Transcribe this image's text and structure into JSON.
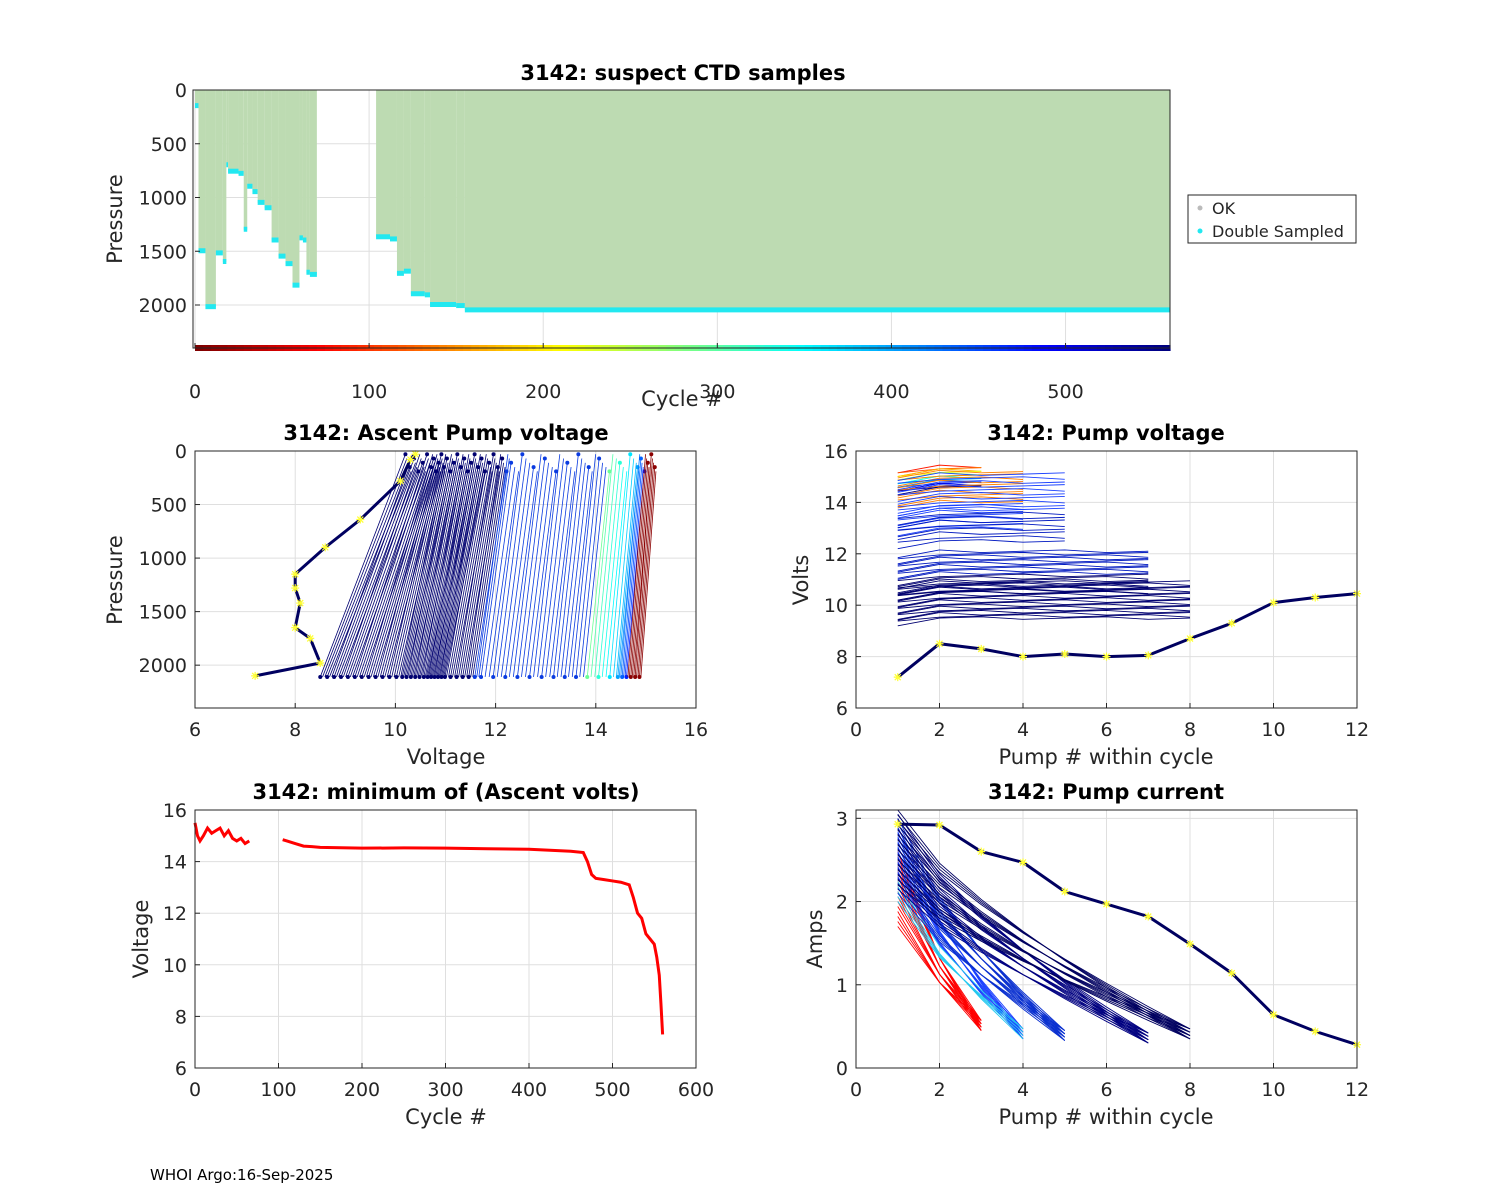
{
  "footer": "WHOI Argo:16-Sep-2025",
  "colors": {
    "ok": "#bddbb2",
    "double": "#22e8f0",
    "min_line": "#ff0000",
    "star": "#ffff33",
    "dark": "#000060"
  },
  "chart_data": [
    {
      "id": "suspect",
      "type": "bar",
      "title": "3142: suspect CTD samples",
      "xlabel": "Cycle #",
      "ylabel": "Pressure",
      "xlim": [
        0,
        560
      ],
      "ylim": [
        2400,
        0
      ],
      "xticks": [
        0,
        100,
        200,
        300,
        400,
        500
      ],
      "yticks": [
        0,
        500,
        1000,
        1500,
        2000
      ],
      "legend": {
        "position": "right",
        "items": [
          "OK",
          "Double Sampled"
        ]
      },
      "colorbar": "jet-reversed",
      "spans": [
        [
          0,
          2,
          150
        ],
        [
          2,
          6,
          1500
        ],
        [
          6,
          12,
          2020
        ],
        [
          12,
          16,
          1520
        ],
        [
          16,
          18,
          1600
        ],
        [
          18,
          19,
          700
        ],
        [
          19,
          25,
          760
        ],
        [
          25,
          28,
          780
        ],
        [
          28,
          30,
          1300
        ],
        [
          30,
          33,
          900
        ],
        [
          33,
          36,
          950
        ],
        [
          36,
          40,
          1050
        ],
        [
          40,
          44,
          1100
        ],
        [
          44,
          48,
          1400
        ],
        [
          48,
          52,
          1550
        ],
        [
          52,
          56,
          1620
        ],
        [
          56,
          60,
          1820
        ],
        [
          60,
          62,
          1380
        ],
        [
          62,
          64,
          1400
        ],
        [
          64,
          66,
          1700
        ],
        [
          66,
          70,
          1720
        ],
        [
          104,
          112,
          1370
        ],
        [
          112,
          116,
          1390
        ],
        [
          116,
          120,
          1710
        ],
        [
          120,
          124,
          1690
        ],
        [
          124,
          132,
          1900
        ],
        [
          132,
          135,
          1910
        ],
        [
          135,
          150,
          2000
        ],
        [
          150,
          155,
          2010
        ],
        [
          155,
          560,
          2050
        ]
      ]
    },
    {
      "id": "ascent",
      "type": "line",
      "title": "3142: Ascent Pump voltage",
      "xlabel": "Voltage",
      "ylabel": "Pressure",
      "xlim": [
        6,
        16
      ],
      "ylim": [
        2400,
        0
      ],
      "xticks": [
        6,
        8,
        10,
        12,
        14,
        16
      ],
      "yticks": [
        0,
        500,
        1000,
        1500,
        2000
      ],
      "last_profile": {
        "x": [
          7.2,
          8.5,
          8.3,
          8.0,
          8.1,
          8.0,
          8.0,
          8.6,
          9.3,
          10.1,
          10.3,
          10.4
        ],
        "y": [
          2100,
          1980,
          1750,
          1650,
          1420,
          1280,
          1150,
          900,
          640,
          280,
          80,
          30
        ]
      },
      "bulk_profiles": [
        {
          "x_top": 10.2,
          "x_bottom": 8.5
        },
        {
          "x_top": 10.7,
          "x_bottom": 9.3
        },
        {
          "x_top": 11.0,
          "x_bottom": 10.1
        },
        {
          "x_top": 11.4,
          "x_bottom": 10.6
        },
        {
          "x_top": 11.8,
          "x_bottom": 11.0
        },
        {
          "x_top": 12.3,
          "x_bottom": 11.7
        },
        {
          "x_top": 13.6,
          "x_bottom": 13.1
        },
        {
          "x_top": 14.8,
          "x_bottom": 14.4
        },
        {
          "x_top": 15.2,
          "x_bottom": 14.9
        }
      ]
    },
    {
      "id": "pumpvolt",
      "type": "line",
      "title": "3142: Pump voltage",
      "xlabel": "Pump # within cycle",
      "ylabel": "Volts",
      "xlim": [
        0,
        12
      ],
      "ylim": [
        6,
        16
      ],
      "xticks": [
        0,
        2,
        4,
        6,
        8,
        10,
        12
      ],
      "yticks": [
        6,
        8,
        10,
        12,
        14,
        16
      ],
      "last_cycle": {
        "x": [
          1,
          2,
          3,
          4,
          5,
          6,
          7,
          8,
          9,
          10,
          11,
          12
        ],
        "y": [
          7.2,
          8.5,
          8.3,
          8.0,
          8.1,
          8.0,
          8.05,
          8.7,
          9.3,
          10.1,
          10.3,
          10.45
        ]
      },
      "bands": [
        {
          "pumps": 3,
          "v_low": 14.6,
          "v_high": 15.4
        },
        {
          "pumps": 4,
          "v_low": 13.0,
          "v_high": 15.2
        },
        {
          "pumps": 5,
          "v_low": 12.5,
          "v_high": 15.1
        },
        {
          "pumps": 7,
          "v_low": 10.5,
          "v_high": 12.1
        },
        {
          "pumps": 8,
          "v_low": 9.5,
          "v_high": 10.9
        }
      ]
    },
    {
      "id": "minvolts",
      "type": "line",
      "title": "3142: minimum of (Ascent volts)",
      "xlabel": "Cycle #",
      "ylabel": "Voltage",
      "xlim": [
        0,
        600
      ],
      "ylim": [
        6,
        16
      ],
      "xticks": [
        0,
        100,
        200,
        300,
        400,
        500,
        600
      ],
      "yticks": [
        6,
        8,
        10,
        12,
        14,
        16
      ],
      "x": [
        0,
        3,
        6,
        10,
        15,
        20,
        25,
        30,
        35,
        40,
        45,
        50,
        55,
        60,
        65,
        70,
        105,
        110,
        120,
        130,
        140,
        150,
        200,
        250,
        300,
        350,
        400,
        450,
        465,
        470,
        475,
        480,
        490,
        500,
        510,
        520,
        525,
        530,
        535,
        540,
        545,
        550,
        553,
        556,
        558,
        560
      ],
      "y": [
        15.5,
        15.0,
        14.8,
        15.0,
        15.3,
        15.1,
        15.2,
        15.3,
        15.0,
        15.2,
        14.9,
        14.8,
        14.9,
        14.7,
        14.8,
        null,
        14.85,
        14.8,
        14.7,
        14.6,
        14.58,
        14.55,
        14.52,
        14.53,
        14.52,
        14.5,
        14.48,
        14.4,
        14.35,
        14.0,
        13.5,
        13.35,
        13.3,
        13.25,
        13.2,
        13.1,
        12.6,
        12.0,
        11.8,
        11.2,
        11.0,
        10.8,
        10.3,
        9.6,
        8.5,
        7.3
      ]
    },
    {
      "id": "pumpcurrent",
      "type": "line",
      "title": "3142: Pump current",
      "xlabel": "Pump # within cycle",
      "ylabel": "Amps",
      "xlim": [
        0,
        12
      ],
      "ylim": [
        0,
        3.1
      ],
      "xticks": [
        0,
        2,
        4,
        6,
        8,
        10,
        12
      ],
      "yticks": [
        0,
        1,
        2,
        3
      ],
      "last_cycle": {
        "x": [
          1,
          2,
          3,
          4,
          5,
          6,
          7,
          8,
          9,
          10,
          11,
          12
        ],
        "y": [
          2.93,
          2.92,
          2.6,
          2.47,
          2.12,
          1.97,
          1.82,
          1.49,
          1.14,
          0.64,
          0.44,
          0.28
        ]
      },
      "fans": [
        {
          "pumps": 3,
          "start": 2.6,
          "end": 0.45
        },
        {
          "pumps": 4,
          "start": 2.9,
          "end": 0.35
        },
        {
          "pumps": 5,
          "start": 3.0,
          "end": 0.33
        },
        {
          "pumps": 7,
          "start": 3.05,
          "end": 0.3
        },
        {
          "pumps": 8,
          "start": 3.1,
          "end": 0.35
        }
      ]
    }
  ]
}
